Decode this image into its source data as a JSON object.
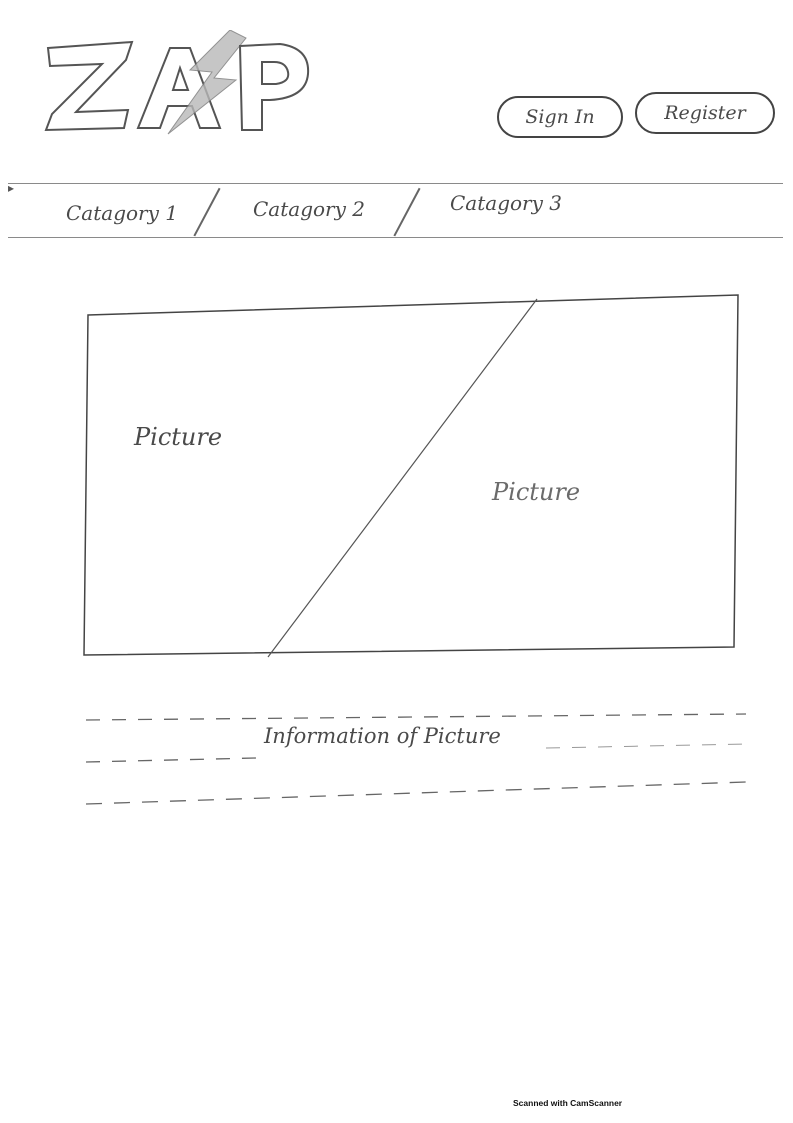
{
  "header": {
    "logo_text": "ZAP",
    "sign_in_label": "Sign In",
    "register_label": "Register"
  },
  "nav": {
    "items": [
      {
        "label": "Catagory 1"
      },
      {
        "label": "Catagory 2"
      },
      {
        "label": "Catagory 3"
      }
    ]
  },
  "main": {
    "picture_left_label": "Picture",
    "picture_right_label": "Picture",
    "info_text": "Information of Picture"
  },
  "footer": {
    "scanner_note": "Scanned with CamScanner"
  }
}
